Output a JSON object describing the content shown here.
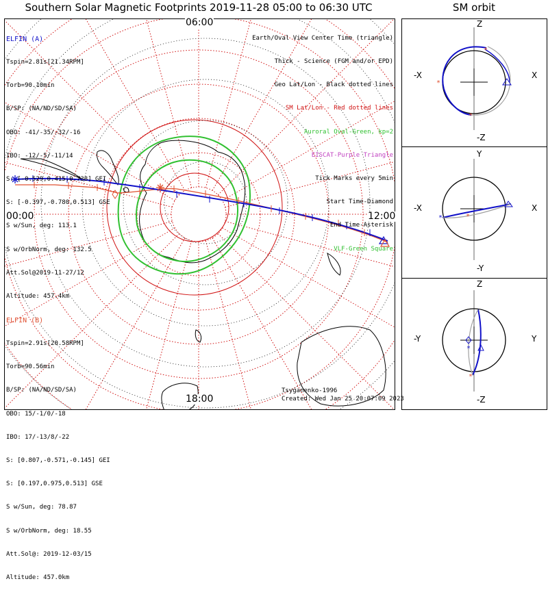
{
  "title": "Southern Solar Magnetic Footprints 2019-11-28 05:00 to 06:30 UTC",
  "orbit_title": "SM orbit",
  "hours": {
    "top": "06:00",
    "left": "00:00",
    "right": "12:00",
    "bottom": "18:00"
  },
  "legend": [
    {
      "text": "Earth/Oval View Center Time (triangle)",
      "color": "#000000"
    },
    {
      "text": "Thick - Science (FGM and/or EPD)",
      "color": "#000000"
    },
    {
      "text": "Geo Lat/Lon - Black dotted lines",
      "color": "#000000"
    },
    {
      "text": "SM Lat/Lon - Red dotted lines",
      "color": "#d01010"
    },
    {
      "text": "Auroral Oval-Green, kp=2",
      "color": "#30c030"
    },
    {
      "text": "EISCAT-Purple Triangle",
      "color": "#c040c0"
    },
    {
      "text": "Tick Marks every 5min",
      "color": "#000000"
    },
    {
      "text": "Start Time-Diamond",
      "color": "#000000"
    },
    {
      "text": "End Time-Asterisk",
      "color": "#000000"
    },
    {
      "text": "VLF-Green Square",
      "color": "#30c030"
    }
  ],
  "elfin_a": {
    "name": "ELFIN (A)",
    "color": "#1010c8",
    "lines": [
      "Tspin=2.81s[21.34RPM]",
      "Torb=90.10min",
      "B/SP: (NA/ND/SD/SA)",
      "OBO: -41/-35/-32/-16",
      "IBO: -12/-5/-11/14",
      "S: [-0.529,0.415,0.738] GEI",
      "S: [-0.397,-0.780,0.513] GSE",
      "S w/Sun, deg: 113.1",
      "S w/OrbNorm, deg: 132.5",
      "Att.Sol@2019-11-27/12",
      "Altitude: 457.4km"
    ]
  },
  "elfin_b": {
    "name": "ELFIN (B)",
    "color": "#e05030",
    "lines": [
      "Tspin=2.91s[20.58RPM]",
      "Torb=90.56min",
      "B/SP: (NA/ND/SD/SA)",
      "OBO: 15/-1/0/-18",
      "IBO: 17/-13/8/-22",
      "S: [0.807,-0.571,-0.145] GEI",
      "S: [0.197,0.975,0.513] GSE",
      "S w/Sun, deg: 78.87",
      "S w/OrbNorm, deg: 18.55",
      "Att.Sol@: 2019-12-03/15",
      "Altitude: 457.0km"
    ]
  },
  "credit": {
    "author": "Tsyganenko-1996",
    "created": "Created: Wed Jan 25 20:07:09 2023"
  },
  "orbit_panels": [
    {
      "top": "Z",
      "bottom": "-Z",
      "left": "-X",
      "right": "X"
    },
    {
      "top": "Y",
      "bottom": "-Y",
      "left": "-X",
      "right": "X"
    },
    {
      "top": "Z",
      "bottom": "-Z",
      "left": "-Y",
      "right": "Y"
    }
  ],
  "colors": {
    "elfin_a": "#1010c8",
    "elfin_b": "#e05030",
    "sm_grid": "#d01010",
    "oval": "#30c030",
    "geo_grid": "#000000"
  }
}
